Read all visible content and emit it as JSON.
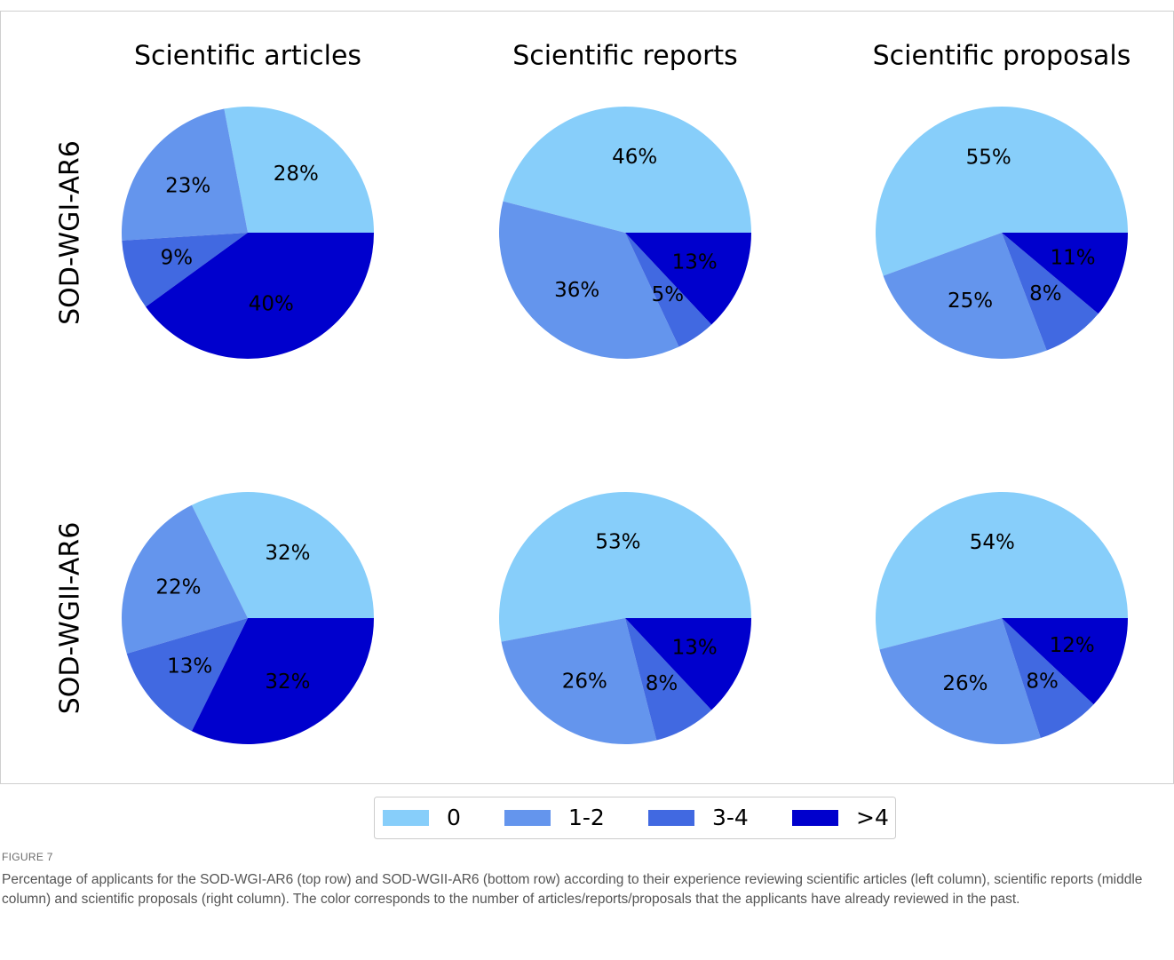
{
  "figure": {
    "column_titles": [
      "Scientific articles",
      "Scientific reports",
      "Scientific proposals"
    ],
    "row_labels": [
      "SOD-WGI-AR6",
      "SOD-WGII-AR6"
    ],
    "legend": {
      "categories": [
        "0",
        "1-2",
        "3-4",
        ">4"
      ],
      "colors": [
        "#87cefa",
        "#6495ed",
        "#4169e1",
        "#0000cd"
      ]
    },
    "label": "FIGURE 7",
    "caption": "Percentage of applicants for the SOD-WGI-AR6 (top row) and SOD-WGII-AR6 (bottom row) according to their experience reviewing scientific articles (left column), scientific reports (middle column) and scientific proposals (right column). The color corresponds to the number of articles/reports/proposals that the applicants have already reviewed in the past."
  },
  "chart_data": [
    {
      "type": "pie",
      "values": [
        28,
        23,
        9,
        40
      ],
      "value_labels": [
        "28%",
        "23%",
        "9%",
        "40%"
      ]
    },
    {
      "type": "pie",
      "values": [
        46,
        36,
        5,
        13
      ],
      "value_labels": [
        "46%",
        "36%",
        "5%",
        "13%"
      ]
    },
    {
      "type": "pie",
      "values": [
        55,
        25,
        8,
        11
      ],
      "value_labels": [
        "55%",
        "25%",
        "8%",
        "11%"
      ]
    },
    {
      "type": "pie",
      "values": [
        32,
        22,
        13,
        32
      ],
      "value_labels": [
        "32%",
        "22%",
        "13%",
        "32%"
      ]
    },
    {
      "type": "pie",
      "values": [
        53,
        26,
        8,
        13
      ],
      "value_labels": [
        "53%",
        "26%",
        "8%",
        "13%"
      ]
    },
    {
      "type": "pie",
      "values": [
        54,
        26,
        8,
        12
      ],
      "value_labels": [
        "54%",
        "26%",
        "8%",
        "12%"
      ]
    }
  ]
}
